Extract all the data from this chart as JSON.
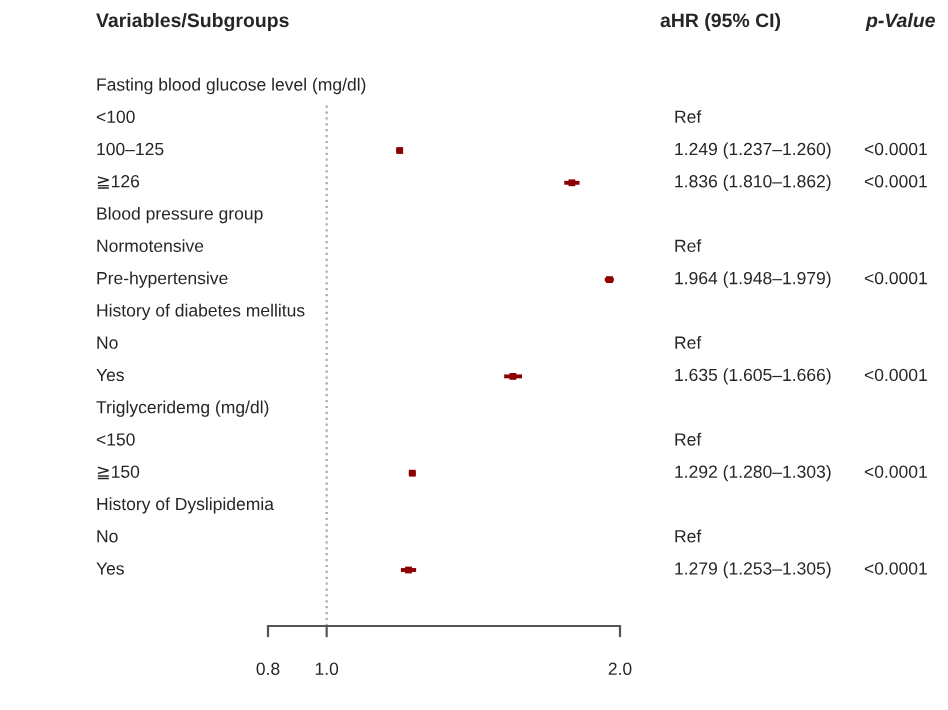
{
  "chart_data": {
    "type": "scatter",
    "orientation": "horizontal",
    "ylabel": "Variables/Subgroups",
    "categories": [
      "Fasting blood glucose level (mg/dl)",
      "<100",
      "100–125",
      "≧126",
      "Blood pressure group",
      "Normotensive",
      "Pre-hypertensive",
      "History of diabetes mellitus",
      "No",
      "Yes",
      "Triglyceridemg (mg/dl)",
      "<150",
      "≧150",
      "History of Dyslipidemia",
      "No",
      "Yes"
    ],
    "series": [
      {
        "color": "#8b0000",
        "values": [
          null,
          null,
          1.249,
          1.836,
          null,
          null,
          1.964,
          null,
          null,
          1.635,
          null,
          null,
          1.292,
          null,
          null,
          1.279
        ],
        "errors": [
          null,
          null,
          [
            1.237,
            1.26
          ],
          [
            1.81,
            1.862
          ],
          null,
          null,
          [
            1.948,
            1.979
          ],
          null,
          null,
          [
            1.605,
            1.666
          ],
          null,
          null,
          [
            1.28,
            1.303
          ],
          null,
          null,
          [
            1.253,
            1.305
          ]
        ],
        "value_labels": [
          null,
          "Ref",
          "1.249 (1.237–1.260)",
          "1.836 (1.810–1.862)",
          null,
          "Ref",
          "1.964 (1.948–1.979)",
          null,
          "Ref",
          "1.635 (1.605–1.666)",
          null,
          "Ref",
          "1.292 (1.280–1.303)",
          null,
          "Ref",
          "1.279 (1.253–1.305)"
        ]
      }
    ],
    "annotations": [
      "aHR (95% CI)",
      "p-Value",
      "<0.0001",
      "<0.0001",
      "<0.0001",
      "<0.0001",
      "<0.0001",
      "<0.0001"
    ],
    "xlim": [
      0.8,
      2.0
    ],
    "xticks": [
      0.8,
      {
        "value": 1,
        "label": "1.0"
      },
      {
        "value": 2,
        "label": "2.0"
      }
    ],
    "ref_lines": [
      {
        "axis": "x",
        "value": 1,
        "color": "#aaaaaa",
        "line_style": "dotted"
      }
    ],
    "marker": "square",
    "tick_labels": "x",
    "legend": false
  }
}
